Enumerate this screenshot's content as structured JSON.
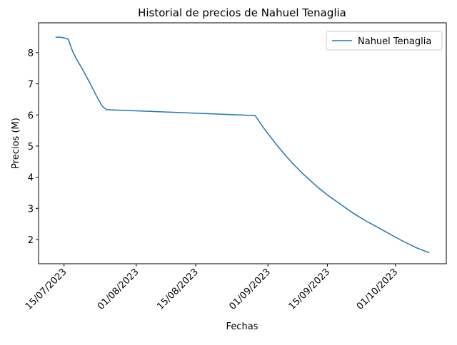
{
  "chart_data": {
    "type": "line",
    "title": "Historial de precios de Nahuel Tenaglia",
    "x_label": "Fechas",
    "y_label": "Precios (M)",
    "x": [
      "2023-07-13",
      "2023-07-14",
      "2023-07-15",
      "2023-07-16",
      "2023-07-17",
      "2023-07-18",
      "2023-07-19",
      "2023-07-20",
      "2023-07-21",
      "2023-07-22",
      "2023-07-23",
      "2023-07-24",
      "2023-07-25",
      "2023-08-29",
      "2023-08-30",
      "2023-08-31",
      "2023-09-01",
      "2023-09-03",
      "2023-09-05",
      "2023-09-07",
      "2023-09-09",
      "2023-09-11",
      "2023-09-13",
      "2023-09-15",
      "2023-09-18",
      "2023-09-21",
      "2023-09-24",
      "2023-09-27",
      "2023-09-30",
      "2023-10-03",
      "2023-10-06",
      "2023-10-09"
    ],
    "series": [
      {
        "name": "Nahuel Tenaglia",
        "color": "#1f77b4",
        "values": [
          8.5,
          8.5,
          8.48,
          8.43,
          8.05,
          7.78,
          7.55,
          7.3,
          7.05,
          6.78,
          6.52,
          6.28,
          6.17,
          5.98,
          5.78,
          5.58,
          5.4,
          5.05,
          4.72,
          4.42,
          4.14,
          3.89,
          3.65,
          3.43,
          3.14,
          2.85,
          2.6,
          2.38,
          2.15,
          1.93,
          1.73,
          1.57
        ]
      }
    ],
    "xlim": [
      "2023-07-09",
      "2023-10-13"
    ],
    "xticks": [
      {
        "value": "2023-07-15",
        "label": "15/07/2023"
      },
      {
        "value": "2023-08-01",
        "label": "01/08/2023"
      },
      {
        "value": "2023-08-15",
        "label": "15/08/2023"
      },
      {
        "value": "2023-09-01",
        "label": "01/09/2023"
      },
      {
        "value": "2023-09-15",
        "label": "15/09/2023"
      },
      {
        "value": "2023-10-01",
        "label": "01/10/2023"
      }
    ],
    "ylim": [
      1.22,
      8.96
    ],
    "yticks": [
      2,
      3,
      4,
      5,
      6,
      7,
      8
    ],
    "grid": false,
    "legend": "upper-right"
  }
}
